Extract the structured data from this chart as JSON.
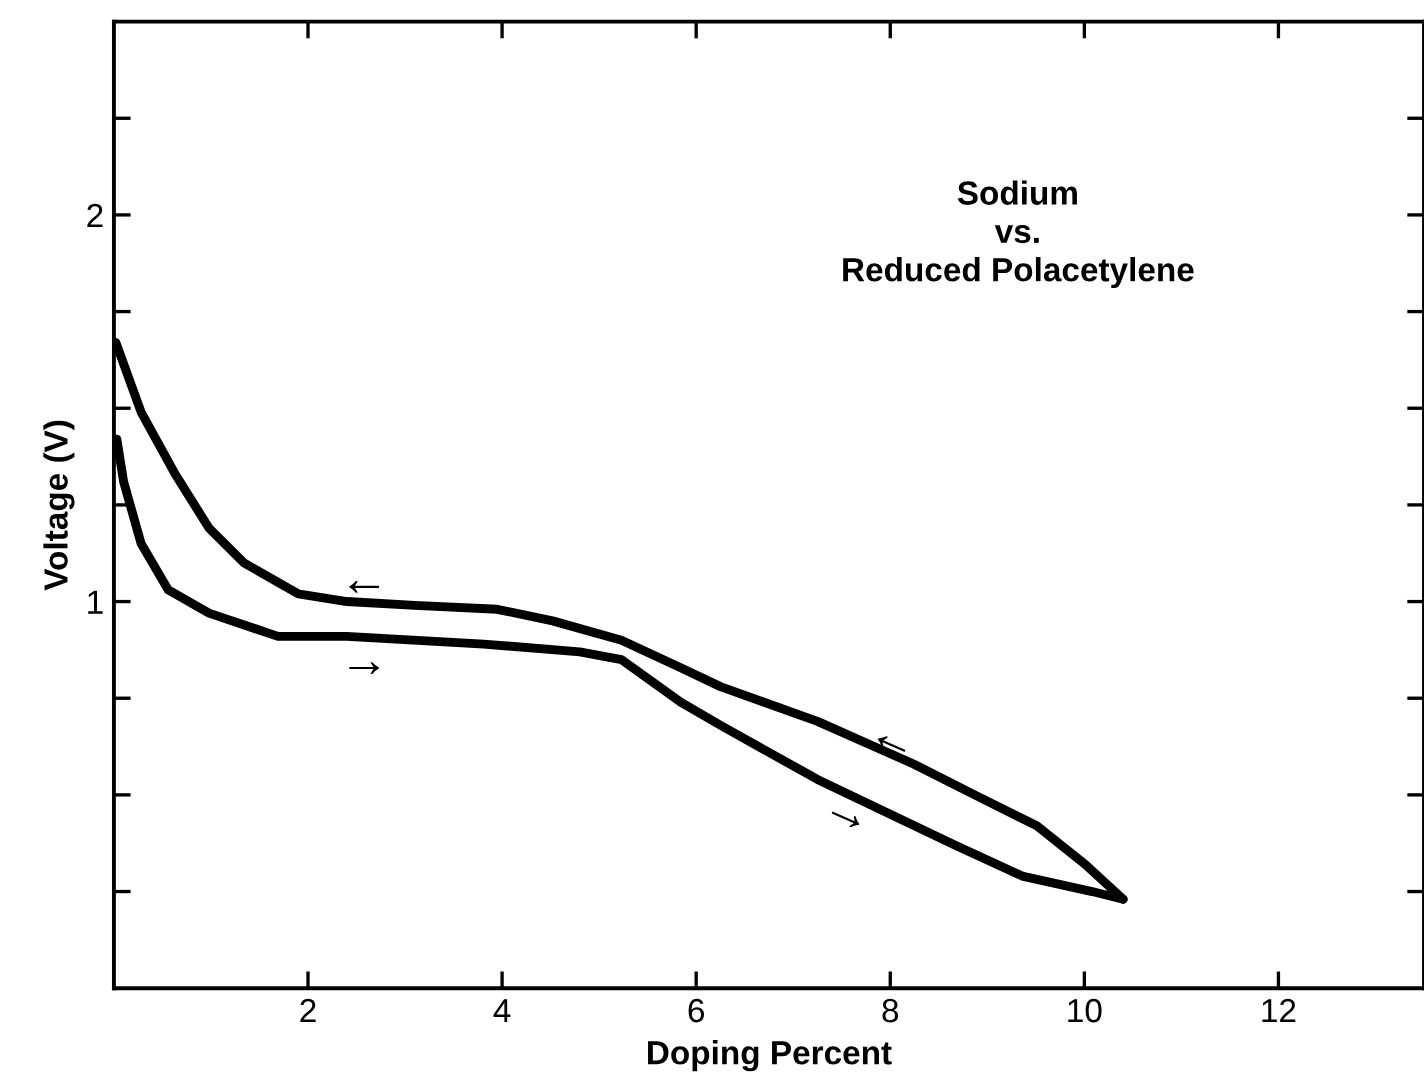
{
  "chart_data": {
    "type": "line",
    "xlabel": "Doping Percent",
    "ylabel": "Voltage (V)",
    "xlim": [
      0,
      13.5
    ],
    "ylim": [
      0,
      2.5
    ],
    "xticks": [
      2,
      4,
      6,
      8,
      10,
      12
    ],
    "yticks": [
      {
        "value": 0.25,
        "label": null
      },
      {
        "value": 0.5,
        "label": null
      },
      {
        "value": 0.75,
        "label": null
      },
      1,
      {
        "value": 1.25,
        "label": null
      },
      {
        "value": 1.5,
        "label": null
      },
      {
        "value": 1.75,
        "label": null
      },
      2,
      {
        "value": 2.25,
        "label": null
      }
    ],
    "grid": false,
    "line_style": "solid",
    "marker": "none",
    "series": [
      {
        "color": "#000000",
        "x": [
          0.02,
          0.28,
          0.63,
          0.98,
          1.34,
          1.9,
          2.4,
          3.1,
          3.95,
          4.52,
          5.23,
          5.83,
          6.25,
          7.25,
          8.24,
          8.87,
          9.51,
          10.01,
          10.4
        ],
        "values": [
          1.67,
          1.49,
          1.33,
          1.19,
          1.1,
          1.02,
          1.0,
          0.99,
          0.98,
          0.95,
          0.9,
          0.83,
          0.78,
          0.69,
          0.58,
          0.5,
          0.42,
          0.32,
          0.23
        ]
      },
      {
        "color": "#000000",
        "x": [
          0.03,
          0.1,
          0.28,
          0.56,
          0.98,
          1.69,
          2.4,
          3.81,
          4.8,
          5.23,
          5.84,
          6.25,
          7.25,
          8.67,
          9.36,
          10.08,
          10.4
        ],
        "values": [
          1.42,
          1.31,
          1.15,
          1.03,
          0.97,
          0.91,
          0.91,
          0.89,
          0.87,
          0.85,
          0.74,
          0.68,
          0.54,
          0.37,
          0.29,
          0.25,
          0.23
        ]
      }
    ],
    "annotations": [
      "Sodium\nvs.\nReduced Polacetylene",
      "←",
      "→",
      "←",
      "→"
    ]
  }
}
